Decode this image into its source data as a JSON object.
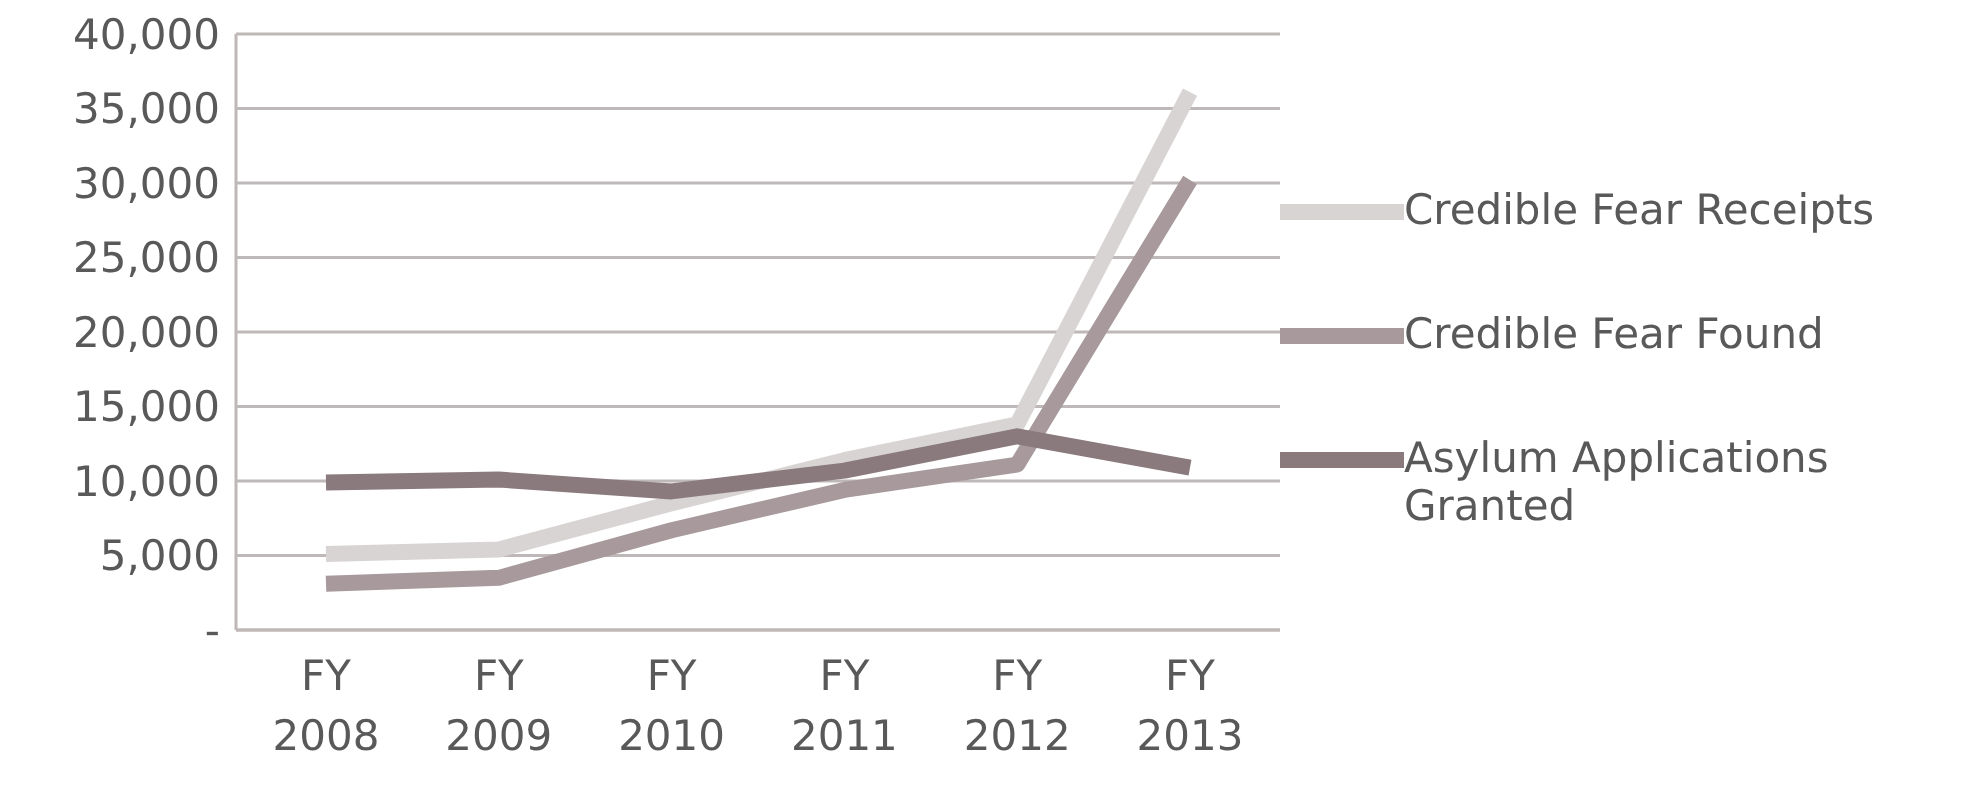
{
  "chart_data": {
    "type": "line",
    "categories": [
      "FY 2008",
      "FY 2009",
      "FY 2010",
      "FY 2011",
      "FY 2012",
      "FY 2013"
    ],
    "series": [
      {
        "name": "Credible Fear Receipts",
        "color": "#d9d4d4",
        "values": [
          5100,
          5400,
          8500,
          11400,
          13800,
          36100
        ]
      },
      {
        "name": "Credible Fear Found",
        "color": "#a89a9c",
        "values": [
          3100,
          3500,
          6700,
          9400,
          11100,
          30200
        ]
      },
      {
        "name": "Asylum Applications Granted",
        "color": "#8a7a7e",
        "values": [
          9900,
          10100,
          9300,
          10700,
          13000,
          10900
        ]
      }
    ],
    "ylim": [
      0,
      40000
    ],
    "yticks": [
      {
        "value": 0,
        "label": "-"
      },
      {
        "value": 5000,
        "label": "5,000"
      },
      {
        "value": 10000,
        "label": "10,000"
      },
      {
        "value": 15000,
        "label": "15,000"
      },
      {
        "value": 20000,
        "label": "20,000"
      },
      {
        "value": 25000,
        "label": "25,000"
      },
      {
        "value": 30000,
        "label": "30,000"
      },
      {
        "value": 35000,
        "label": "35,000"
      },
      {
        "value": 40000,
        "label": "40,000"
      }
    ],
    "grid": "y",
    "legend": "right",
    "marker": "none",
    "line_style": "solid"
  }
}
